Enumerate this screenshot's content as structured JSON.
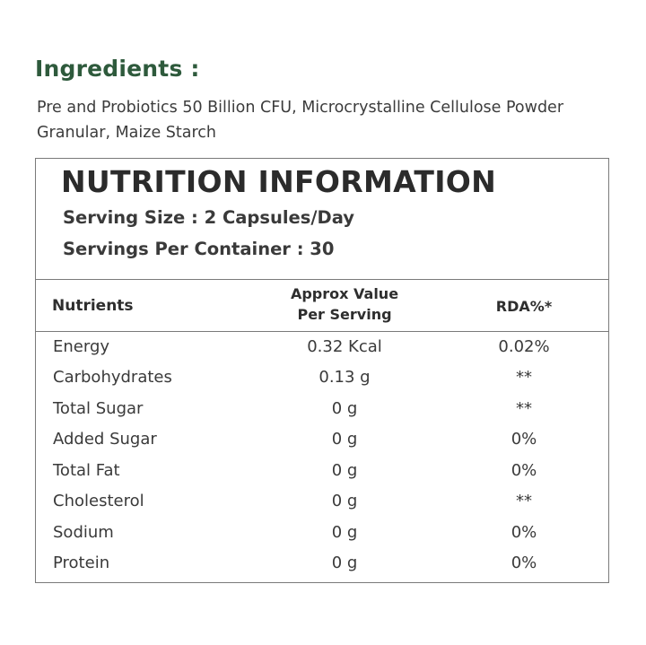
{
  "ingredients": {
    "heading": "Ingredients :",
    "text": "Pre and Probiotics 50 Billion CFU, Microcrystalline Cellulose Powder Granular, Maize Starch"
  },
  "nutrition": {
    "title": "NUTRITION INFORMATION",
    "serving_size": "Serving Size : 2 Capsules/Day",
    "servings_per_container": "Servings Per Container : 30",
    "columns": {
      "nutrients": "Nutrients",
      "value_line1": "Approx Value",
      "value_line2": "Per Serving",
      "rda": "RDA%*"
    },
    "rows": [
      {
        "name": "Energy",
        "value": "0.32 Kcal",
        "rda": "0.02%"
      },
      {
        "name": "Carbohydrates",
        "value": "0.13 g",
        "rda": "**"
      },
      {
        "name": "Total Sugar",
        "value": "0 g",
        "rda": "**"
      },
      {
        "name": "Added Sugar",
        "value": "0 g",
        "rda": "0%"
      },
      {
        "name": "Total Fat",
        "value": "0 g",
        "rda": "0%"
      },
      {
        "name": "Cholesterol",
        "value": "0 g",
        "rda": "**"
      },
      {
        "name": "Sodium",
        "value": "0 g",
        "rda": "0%"
      },
      {
        "name": "Protein",
        "value": "0 g",
        "rda": "0%"
      }
    ]
  }
}
